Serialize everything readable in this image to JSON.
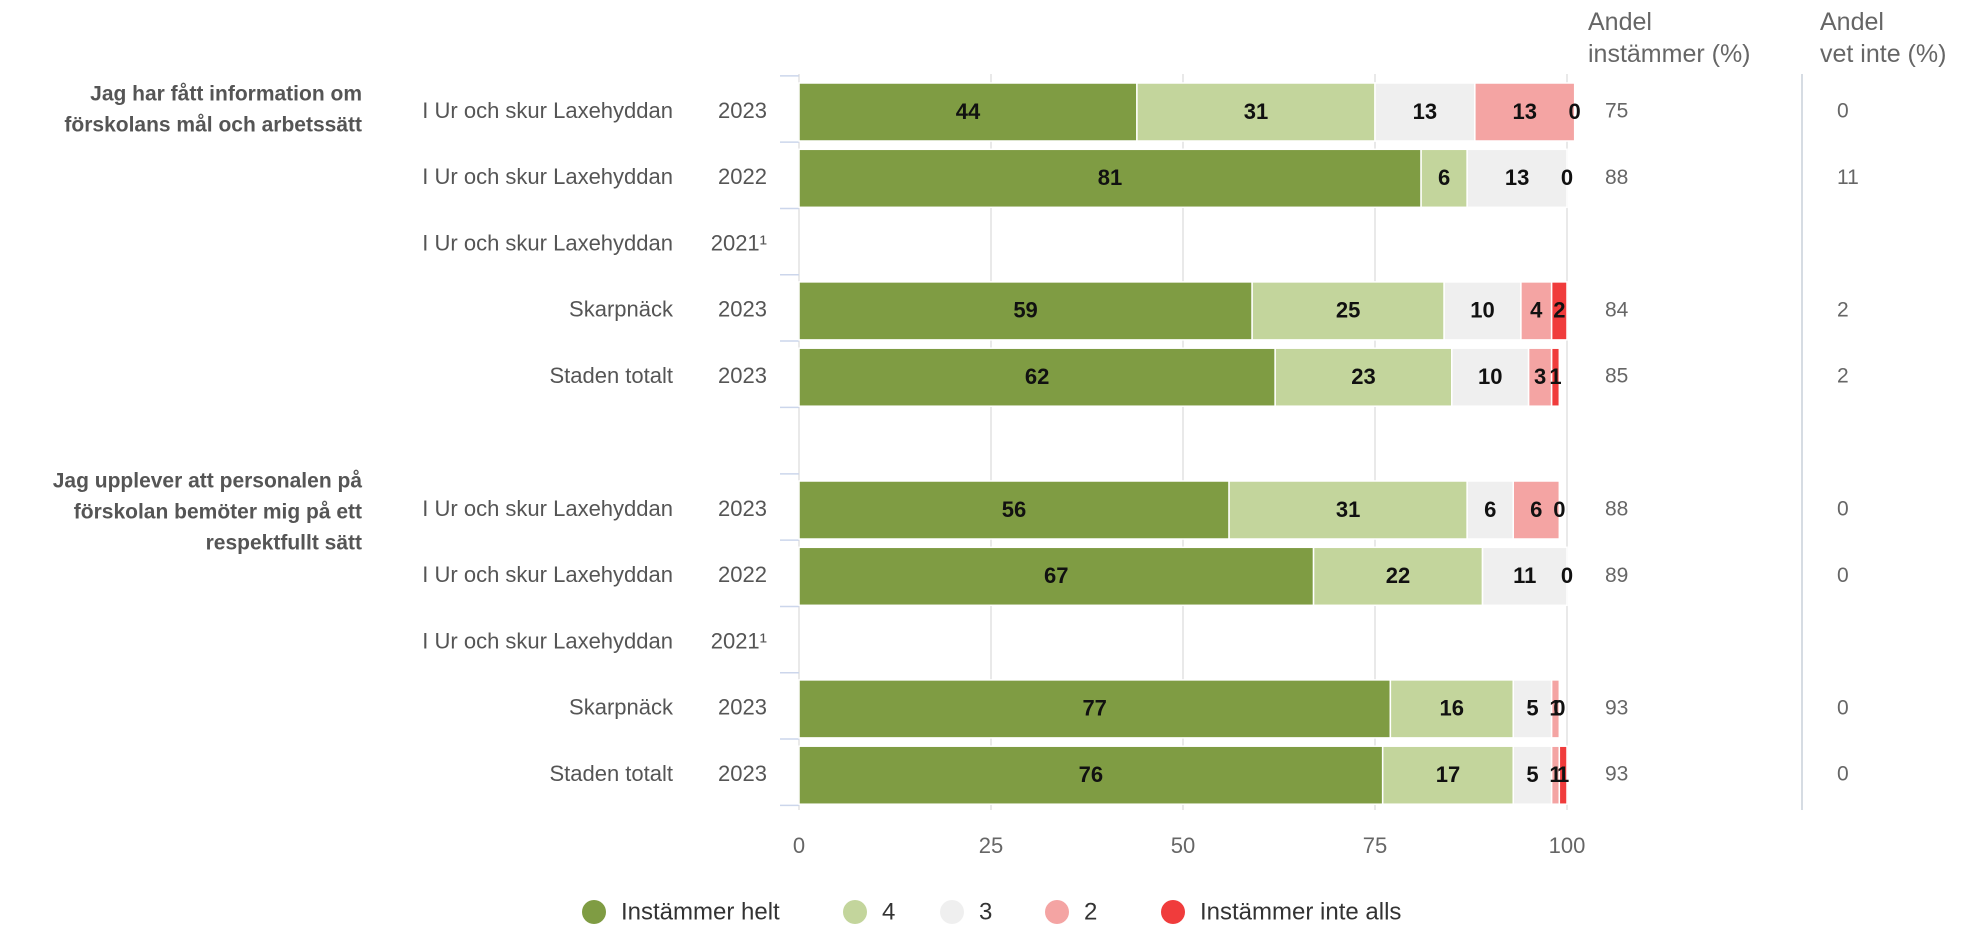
{
  "columns": {
    "agree_header_line1": "Andel",
    "agree_header_line2": "instämmer (%)",
    "dontknow_header_line1": "Andel",
    "dontknow_header_line2": "vet inte (%)"
  },
  "chart_data": {
    "type": "bar",
    "orientation": "horizontal",
    "stacked": true,
    "xlim": [
      0,
      100
    ],
    "xticks": [
      0,
      25,
      50,
      75,
      100
    ],
    "grid": true,
    "legend_position": "bottom",
    "series": [
      {
        "name": "Instämmer helt",
        "color": "#7f9c43"
      },
      {
        "name": "4",
        "color": "#c3d59c"
      },
      {
        "name": "3",
        "color": "#efefef"
      },
      {
        "name": "2",
        "color": "#f4a4a3"
      },
      {
        "name": "Instämmer inte alls",
        "color": "#f03c3c"
      }
    ],
    "groups": [
      {
        "question_lines": [
          "Jag har fått information om",
          "förskolans mål och arbetssätt"
        ],
        "rows": [
          {
            "unit": "I Ur och skur Laxehyddan",
            "year": "2023",
            "values": [
              44,
              31,
              13,
              13,
              0
            ],
            "agree": "75",
            "dont_know": "0"
          },
          {
            "unit": "I Ur och skur Laxehyddan",
            "year": "2022",
            "values": [
              81,
              6,
              13,
              0,
              0
            ],
            "labels": [
              "81",
              "6",
              "13",
              "0",
              ""
            ],
            "agree": "88",
            "dont_know": "11"
          },
          {
            "unit": "I Ur och skur Laxehyddan",
            "year": "2021¹",
            "values": null,
            "agree": "",
            "dont_know": ""
          },
          {
            "unit": "Skarpnäck",
            "year": "2023",
            "values": [
              59,
              25,
              10,
              4,
              2
            ],
            "agree": "84",
            "dont_know": "2"
          },
          {
            "unit": "Staden totalt",
            "year": "2023",
            "values": [
              62,
              23,
              10,
              3,
              1
            ],
            "agree": "85",
            "dont_know": "2"
          }
        ]
      },
      {
        "question_lines": [
          "Jag upplever att personalen på",
          "förskolan bemöter mig på ett",
          "respektfullt sätt"
        ],
        "rows": [
          {
            "unit": "I Ur och skur Laxehyddan",
            "year": "2023",
            "values": [
              56,
              31,
              6,
              6,
              0
            ],
            "agree": "88",
            "dont_know": "0"
          },
          {
            "unit": "I Ur och skur Laxehyddan",
            "year": "2022",
            "values": [
              67,
              22,
              11,
              0,
              0
            ],
            "labels": [
              "67",
              "22",
              "11",
              "0",
              ""
            ],
            "agree": "89",
            "dont_know": "0"
          },
          {
            "unit": "I Ur och skur Laxehyddan",
            "year": "2021¹",
            "values": null,
            "agree": "",
            "dont_know": ""
          },
          {
            "unit": "Skarpnäck",
            "year": "2023",
            "values": [
              77,
              16,
              5,
              1,
              0
            ],
            "agree": "93",
            "dont_know": "0"
          },
          {
            "unit": "Staden totalt",
            "year": "2023",
            "values": [
              76,
              17,
              5,
              1,
              1
            ],
            "agree": "93",
            "dont_know": "0"
          }
        ]
      }
    ]
  }
}
